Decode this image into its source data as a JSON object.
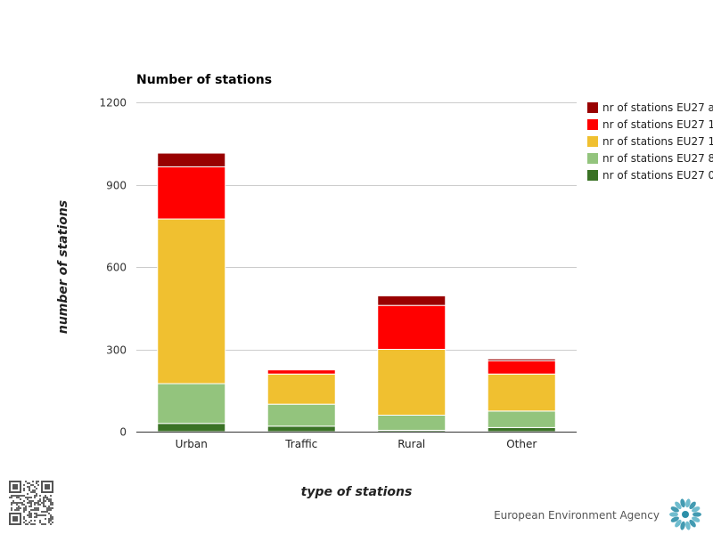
{
  "chart_data": {
    "type": "bar",
    "stacked": true,
    "title": "Number of stations",
    "xlabel": "type of stations",
    "ylabel": "number of stations",
    "categories": [
      "Urban",
      "Traffic",
      "Rural",
      "Other"
    ],
    "ylim": [
      0,
      1200
    ],
    "yticks": [
      0,
      300,
      600,
      900,
      1200
    ],
    "grid": true,
    "legend_position": "right",
    "series": [
      {
        "name": "nr of stations EU27 0",
        "color": "#3a7225",
        "values": [
          30,
          20,
          5,
          15
        ]
      },
      {
        "name": "nr of stations EU27 8",
        "color": "#93c47d",
        "values": [
          145,
          80,
          55,
          60
        ]
      },
      {
        "name": "nr of stations EU27 1",
        "color": "#f0c030",
        "values": [
          600,
          110,
          240,
          135
        ]
      },
      {
        "name": "nr of stations EU27 1",
        "color": "#ff0000",
        "values": [
          190,
          15,
          160,
          48
        ]
      },
      {
        "name": "nr of stations EU27 a",
        "color": "#990000",
        "values": [
          50,
          0,
          35,
          7
        ]
      }
    ]
  },
  "footer": {
    "logo_text": "European Environment Agency",
    "logo_icon": "eea-logo-icon",
    "qr_icon": "qr-code-icon"
  }
}
